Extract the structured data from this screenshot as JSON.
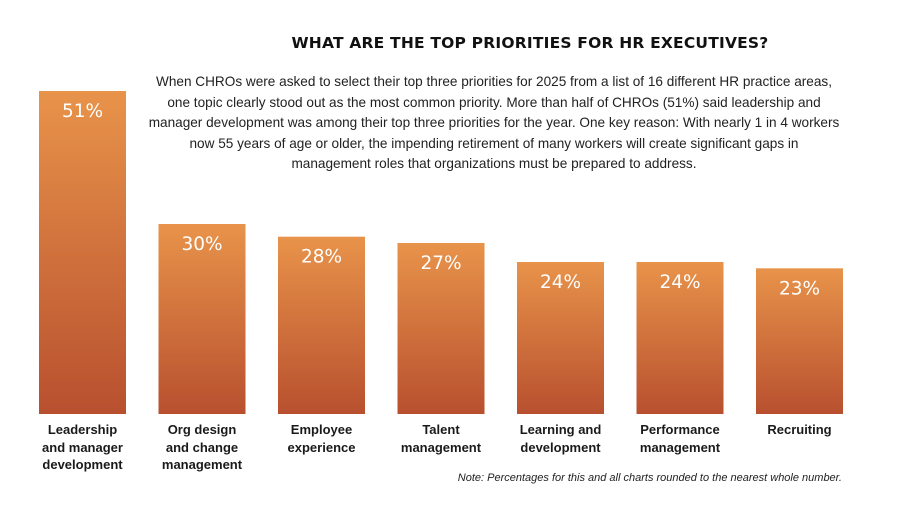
{
  "chart_data": {
    "type": "bar",
    "title": "WHAT ARE THE TOP PRIORITIES FOR HR EXECUTIVES?",
    "description": "When CHROs were asked to select their top three priorities for 2025 from a list of 16 different HR practice areas, one topic clearly stood out as the most common priority. More than half of CHROs (51%) said leadership and manager development was among their top three priorities for the year. One key reason: With nearly 1 in 4 workers now 55 years of age or older, the impending retirement of many workers will create significant gaps in management roles that organizations must be prepared to address.",
    "categories": [
      "Leadership\nand manager\ndevelopment",
      "Org design\nand change\nmanagement",
      "Employee\nexperience",
      "Talent\nmanagement",
      "Learning and\ndevelopment",
      "Performance\nmanagement",
      "Recruiting"
    ],
    "values": [
      51,
      30,
      28,
      27,
      24,
      24,
      23
    ],
    "value_labels": [
      "51%",
      "30%",
      "28%",
      "27%",
      "24%",
      "24%",
      "23%"
    ],
    "unit": "%",
    "note": "Note: Percentages for this and all charts rounded to the nearest whole number.",
    "ylim": [
      0,
      51
    ],
    "grid": false,
    "legend": "none",
    "colors": {
      "bar_top": "#E8934A",
      "bar_bottom": "#B8502F",
      "value_text": "#FFFFFF"
    }
  }
}
